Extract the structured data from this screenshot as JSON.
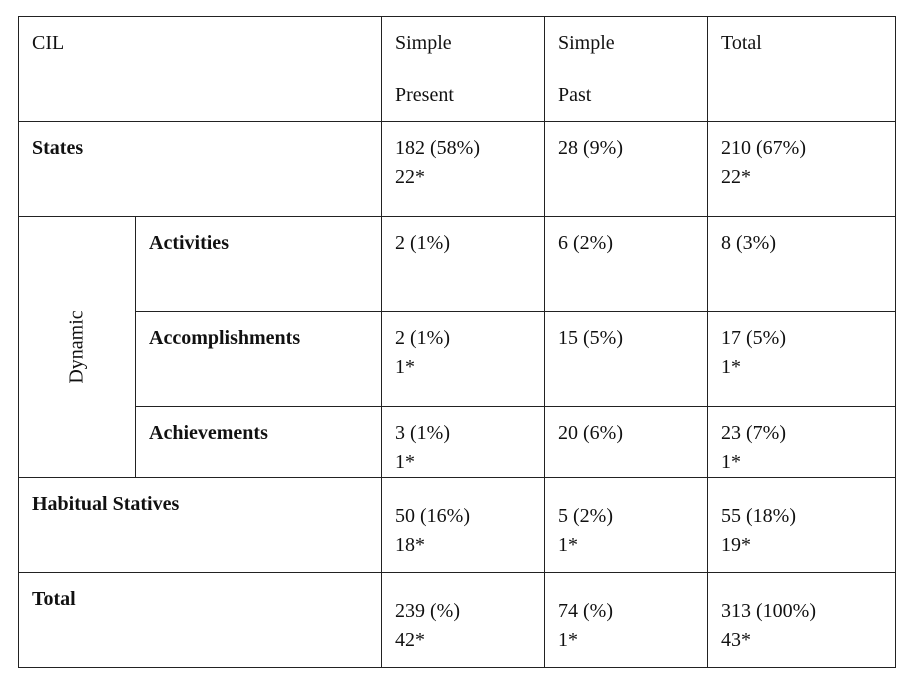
{
  "table": {
    "corner": "CIL",
    "columns": [
      {
        "line1": "Simple",
        "line2": "Present"
      },
      {
        "line1": "Simple",
        "line2": "Past"
      },
      {
        "line1": "Total",
        "line2": ""
      }
    ],
    "states": {
      "label": "States",
      "present": [
        "182 (58%)",
        "22*"
      ],
      "past": [
        "28 (9%)"
      ],
      "total": [
        "210 (67%)",
        "22*"
      ]
    },
    "dynamic_label": "Dynamic",
    "activities": {
      "label": "Activities",
      "present": [
        "2 (1%)"
      ],
      "past": [
        "6 (2%)"
      ],
      "total": [
        "8 (3%)"
      ]
    },
    "accomplishments": {
      "label": "Accomplishments",
      "present": [
        "2 (1%)",
        "1*"
      ],
      "past": [
        "15 (5%)"
      ],
      "total": [
        "17 (5%)",
        "1*"
      ]
    },
    "achievements": {
      "label": "Achievements",
      "present": [
        "3 (1%)",
        "1*"
      ],
      "past": [
        "20 (6%)"
      ],
      "total": [
        "23 (7%)",
        "1*"
      ]
    },
    "habitual": {
      "label": "Habitual Statives",
      "present": [
        "50 (16%)",
        "18*"
      ],
      "past": [
        "5 (2%)",
        "1*"
      ],
      "total": [
        "55 (18%)",
        "19*"
      ]
    },
    "total_row": {
      "label": "Total",
      "present": [
        "239 (%)",
        "42*"
      ],
      "past": [
        "74 (%)",
        "1*"
      ],
      "total": [
        "313 (100%)",
        "43*"
      ]
    }
  }
}
